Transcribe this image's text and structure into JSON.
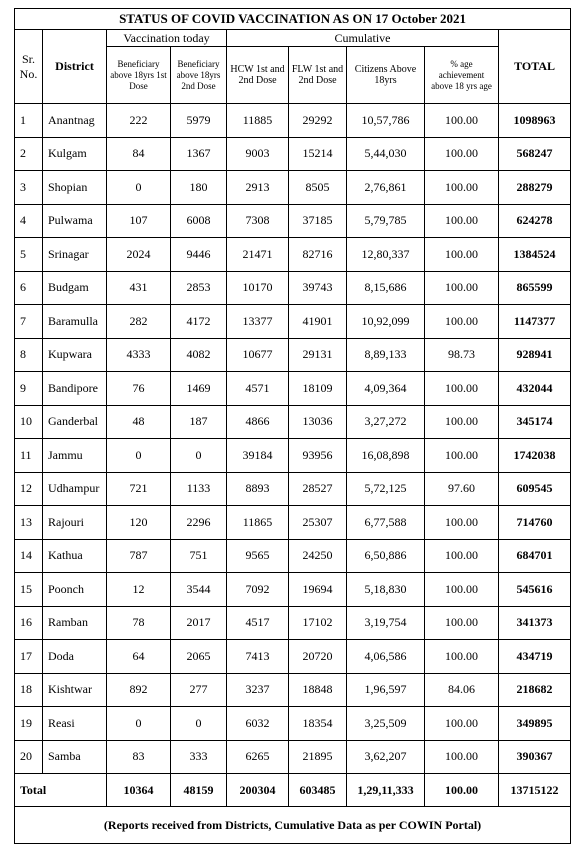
{
  "title": "STATUS OF COVID VACCINATION AS ON 17 October 2021",
  "headers": {
    "sr": "Sr. No.",
    "district": "District",
    "vaccination_today": "Vaccination today",
    "cumulative": "Cumulative",
    "ben_1st": "Beneficiary above 18yrs 1st Dose",
    "ben_2nd": "Beneficiary above 18yrs 2nd Dose",
    "hcw": "HCW 1st and 2nd Dose",
    "flw": "FLW 1st and 2nd Dose",
    "citizens": "Citizens Above 18yrs",
    "pct": "% age achievement above 18 yrs age",
    "total": "TOTAL"
  },
  "rows": [
    [
      "1",
      "Anantnag",
      "222",
      "5979",
      "11885",
      "29292",
      "10,57,786",
      "100.00",
      "1098963"
    ],
    [
      "2",
      "Kulgam",
      "84",
      "1367",
      "9003",
      "15214",
      "5,44,030",
      "100.00",
      "568247"
    ],
    [
      "3",
      "Shopian",
      "0",
      "180",
      "2913",
      "8505",
      "2,76,861",
      "100.00",
      "288279"
    ],
    [
      "4",
      "Pulwama",
      "107",
      "6008",
      "7308",
      "37185",
      "5,79,785",
      "100.00",
      "624278"
    ],
    [
      "5",
      "Srinagar",
      "2024",
      "9446",
      "21471",
      "82716",
      "12,80,337",
      "100.00",
      "1384524"
    ],
    [
      "6",
      "Budgam",
      "431",
      "2853",
      "10170",
      "39743",
      "8,15,686",
      "100.00",
      "865599"
    ],
    [
      "7",
      "Baramulla",
      "282",
      "4172",
      "13377",
      "41901",
      "10,92,099",
      "100.00",
      "1147377"
    ],
    [
      "8",
      "Kupwara",
      "4333",
      "4082",
      "10677",
      "29131",
      "8,89,133",
      "98.73",
      "928941"
    ],
    [
      "9",
      "Bandipore",
      "76",
      "1469",
      "4571",
      "18109",
      "4,09,364",
      "100.00",
      "432044"
    ],
    [
      "10",
      "Ganderbal",
      "48",
      "187",
      "4866",
      "13036",
      "3,27,272",
      "100.00",
      "345174"
    ],
    [
      "11",
      "Jammu",
      "0",
      "0",
      "39184",
      "93956",
      "16,08,898",
      "100.00",
      "1742038"
    ],
    [
      "12",
      "Udhampur",
      "721",
      "1133",
      "8893",
      "28527",
      "5,72,125",
      "97.60",
      "609545"
    ],
    [
      "13",
      "Rajouri",
      "120",
      "2296",
      "11865",
      "25307",
      "6,77,588",
      "100.00",
      "714760"
    ],
    [
      "14",
      "Kathua",
      "787",
      "751",
      "9565",
      "24250",
      "6,50,886",
      "100.00",
      "684701"
    ],
    [
      "15",
      "Poonch",
      "12",
      "3544",
      "7092",
      "19694",
      "5,18,830",
      "100.00",
      "545616"
    ],
    [
      "16",
      "Ramban",
      "78",
      "2017",
      "4517",
      "17102",
      "3,19,754",
      "100.00",
      "341373"
    ],
    [
      "17",
      "Doda",
      "64",
      "2065",
      "7413",
      "20720",
      "4,06,586",
      "100.00",
      "434719"
    ],
    [
      "18",
      "Kishtwar",
      "892",
      "277",
      "3237",
      "18848",
      "1,96,597",
      "84.06",
      "218682"
    ],
    [
      "19",
      "Reasi",
      "0",
      "0",
      "6032",
      "18354",
      "3,25,509",
      "100.00",
      "349895"
    ],
    [
      "20",
      "Samba",
      "83",
      "333",
      "6265",
      "21895",
      "3,62,207",
      "100.00",
      "390367"
    ]
  ],
  "totals": {
    "label": "Total",
    "ben_1st": "10364",
    "ben_2nd": "48159",
    "hcw": "200304",
    "flw": "603485",
    "citizens": "1,29,11,333",
    "pct": "100.00",
    "total": "13715122"
  },
  "footer": "(Reports received from Districts, Cumulative Data as per COWIN Portal)"
}
